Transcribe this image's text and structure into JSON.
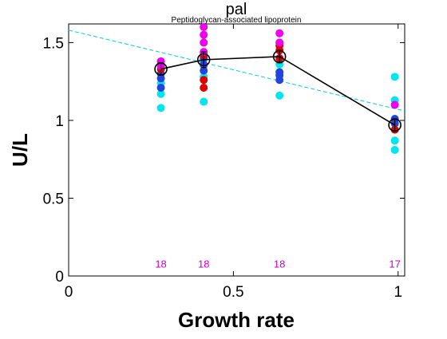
{
  "chart_data": {
    "type": "scatter",
    "title": "pal",
    "subtitle": "Peptidoglycan-associated lipoprotein",
    "xlabel": "Growth rate",
    "ylabel": "U/L",
    "xlim": [
      0,
      1.02
    ],
    "ylim": [
      0,
      1.62
    ],
    "xticks": [
      0,
      0.5,
      1
    ],
    "xtick_labels": [
      "0",
      "0.5",
      "1"
    ],
    "yticks": [
      0,
      0.5,
      1,
      1.5
    ],
    "ytick_labels": [
      "0",
      "0.5",
      "1",
      "1.5"
    ],
    "grid": false,
    "replicate_colors": [
      "#00e5ee",
      "#2244dd",
      "#dd0000",
      "#ee00ee"
    ],
    "replicates": [
      {
        "x": 0.28,
        "y": 1.08,
        "color": 0
      },
      {
        "x": 0.28,
        "y": 1.17,
        "color": 0
      },
      {
        "x": 0.28,
        "y": 1.24,
        "color": 0
      },
      {
        "x": 0.28,
        "y": 1.21,
        "color": 1
      },
      {
        "x": 0.28,
        "y": 1.27,
        "color": 1
      },
      {
        "x": 0.28,
        "y": 1.3,
        "color": 1
      },
      {
        "x": 0.28,
        "y": 1.33,
        "color": 2
      },
      {
        "x": 0.28,
        "y": 1.36,
        "color": 2
      },
      {
        "x": 0.28,
        "y": 1.35,
        "color": 3
      },
      {
        "x": 0.28,
        "y": 1.38,
        "color": 3
      },
      {
        "x": 0.41,
        "y": 1.12,
        "color": 0
      },
      {
        "x": 0.41,
        "y": 1.28,
        "color": 0
      },
      {
        "x": 0.41,
        "y": 1.35,
        "color": 0
      },
      {
        "x": 0.41,
        "y": 1.32,
        "color": 1
      },
      {
        "x": 0.41,
        "y": 1.36,
        "color": 1
      },
      {
        "x": 0.41,
        "y": 1.4,
        "color": 1
      },
      {
        "x": 0.41,
        "y": 1.21,
        "color": 2
      },
      {
        "x": 0.41,
        "y": 1.26,
        "color": 2
      },
      {
        "x": 0.41,
        "y": 1.42,
        "color": 2
      },
      {
        "x": 0.41,
        "y": 1.44,
        "color": 3
      },
      {
        "x": 0.41,
        "y": 1.5,
        "color": 3
      },
      {
        "x": 0.41,
        "y": 1.55,
        "color": 3
      },
      {
        "x": 0.41,
        "y": 1.6,
        "color": 3
      },
      {
        "x": 0.64,
        "y": 1.16,
        "color": 0
      },
      {
        "x": 0.64,
        "y": 1.36,
        "color": 0
      },
      {
        "x": 0.64,
        "y": 1.26,
        "color": 1
      },
      {
        "x": 0.64,
        "y": 1.29,
        "color": 1
      },
      {
        "x": 0.64,
        "y": 1.31,
        "color": 1
      },
      {
        "x": 0.64,
        "y": 1.4,
        "color": 2
      },
      {
        "x": 0.64,
        "y": 1.45,
        "color": 2
      },
      {
        "x": 0.64,
        "y": 1.48,
        "color": 2
      },
      {
        "x": 0.64,
        "y": 1.5,
        "color": 3
      },
      {
        "x": 0.64,
        "y": 1.56,
        "color": 3
      },
      {
        "x": 0.99,
        "y": 0.81,
        "color": 0
      },
      {
        "x": 0.99,
        "y": 0.87,
        "color": 0
      },
      {
        "x": 0.99,
        "y": 1.13,
        "color": 0
      },
      {
        "x": 0.99,
        "y": 1.28,
        "color": 0
      },
      {
        "x": 0.99,
        "y": 0.98,
        "color": 1
      },
      {
        "x": 0.99,
        "y": 1.01,
        "color": 1
      },
      {
        "x": 0.99,
        "y": 0.94,
        "color": 2
      },
      {
        "x": 0.99,
        "y": 1.1,
        "color": 3
      }
    ],
    "mean_series": {
      "x": [
        0.28,
        0.41,
        0.64,
        0.99
      ],
      "y": [
        1.33,
        1.39,
        1.41,
        0.97
      ],
      "err": [
        0.04,
        0.05,
        0.04,
        0.04
      ],
      "color": "#000000"
    },
    "fit_line": {
      "x": [
        0,
        1.02
      ],
      "y": [
        1.58,
        1.06
      ],
      "color": "#00ccdd",
      "style": "dashed"
    },
    "counts": [
      {
        "x": 0.28,
        "label": "18"
      },
      {
        "x": 0.41,
        "label": "18"
      },
      {
        "x": 0.64,
        "label": "18"
      },
      {
        "x": 0.99,
        "label": "17"
      }
    ],
    "count_y": 0.08
  }
}
